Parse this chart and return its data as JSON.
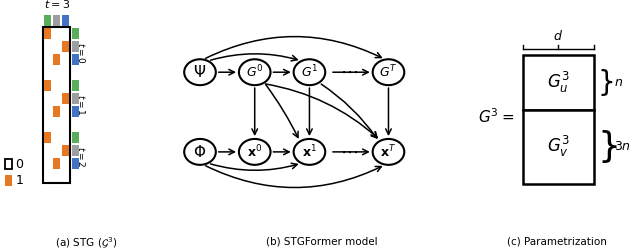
{
  "title_a": "(a) STG ($\\mathcal{G}^3$)",
  "title_b": "(b) STGFormer model",
  "title_c": "(c) Parametrization",
  "bg_color": "#ffffff",
  "orange": "#E87722",
  "green": "#5BAD5E",
  "gray": "#9E9E9E",
  "blue": "#4472C4",
  "matrix_data": [
    [
      1,
      0,
      0
    ],
    [
      0,
      0,
      1
    ],
    [
      0,
      1,
      0
    ],
    [
      0,
      0,
      0
    ],
    [
      1,
      0,
      0
    ],
    [
      0,
      0,
      1
    ],
    [
      0,
      1,
      0
    ],
    [
      0,
      0,
      0
    ],
    [
      1,
      0,
      0
    ],
    [
      0,
      0,
      1
    ],
    [
      0,
      1,
      0
    ],
    [
      0,
      0,
      0
    ]
  ]
}
